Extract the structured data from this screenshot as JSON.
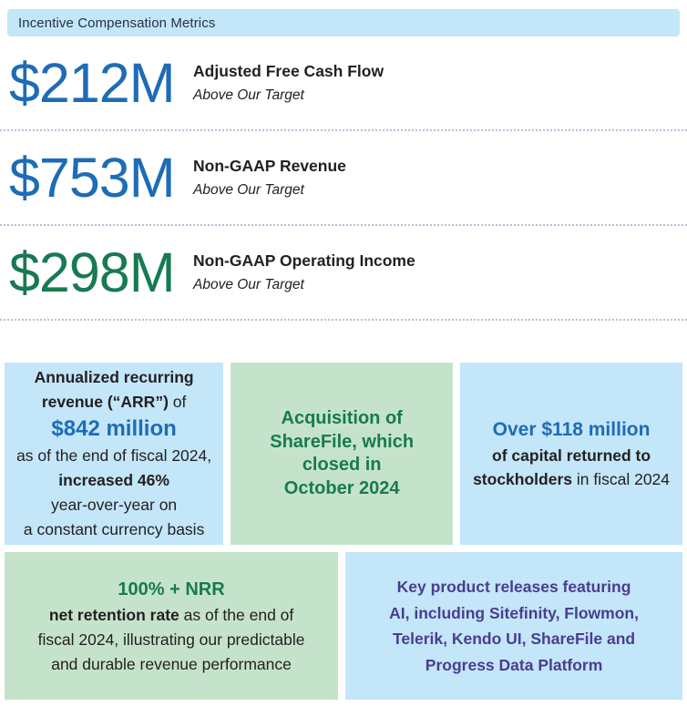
{
  "header": {
    "title": "Incentive Compensation Metrics"
  },
  "metrics": [
    {
      "value": "$212M",
      "label": "Adjusted Free Cash Flow",
      "note": "Above Our Target",
      "value_color": "#1e6cb5"
    },
    {
      "value": "$753M",
      "label": "Non-GAAP Revenue",
      "note": "Above Our Target",
      "value_color": "#1e6cb5"
    },
    {
      "value": "$298M",
      "label": "Non-GAAP Operating Income",
      "note": "Above Our Target",
      "value_color": "#187a52"
    }
  ],
  "highlight_boxes": {
    "arr": {
      "line1_bold": "Annualized recurring",
      "line2_bold": "revenue (“ARR”)",
      "line2_regular": " of",
      "amount": "$842 million",
      "line3": "as of the end of fiscal 2024,",
      "line4_bold": "increased 46%",
      "line5": "year-over-year on",
      "line6": "a constant currency basis"
    },
    "acquisition": {
      "line1": "Acquisition of",
      "line2": "ShareFile, which",
      "line3": "closed in",
      "line4": "October 2024"
    },
    "capital_return": {
      "amount": "Over $118 million",
      "line2_bold": "of capital returned to",
      "line3_bold": "stockholders",
      "line3_regular": " in fiscal 2024"
    },
    "nrr": {
      "headline": "100% + NRR",
      "line2_bold": "net retention rate",
      "line2_regular": " as of the end of",
      "line3": "fiscal 2024, illustrating our predictable",
      "line4": "and durable revenue performance"
    },
    "product_releases": {
      "line1": "Key product releases featuring",
      "line2": "AI, including Sitefinity, Flowmon,",
      "line3": "Telerik, Kendo UI, ShareFile and",
      "line4": "Progress Data Platform"
    }
  },
  "colors": {
    "accent_blue": "#1e6cb5",
    "accent_green": "#187a52",
    "accent_purple": "#4a3d8f",
    "light_blue_bg": "#c3e6f9",
    "light_green_bg": "#c5e3cb",
    "dark_text": "#242021",
    "divider_dotted": "#b5c1d5"
  }
}
